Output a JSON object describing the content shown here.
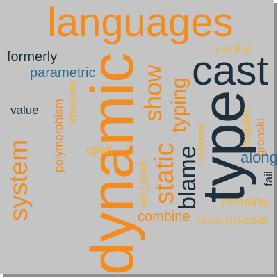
{
  "palette": {
    "orange": "#f28c1e",
    "amber": "#f2b233",
    "navy": "#1d2f3d",
    "blue": "#2f6b94",
    "background": "#c4c4c4"
  },
  "words": [
    {
      "text": "languages",
      "color": "orange"
    },
    {
      "text": "cast",
      "color": "navy"
    },
    {
      "text": "formerly",
      "color": "navy"
    },
    {
      "text": "casting",
      "color": "amber"
    },
    {
      "text": "parametric",
      "color": "blue"
    },
    {
      "text": "polymorphism",
      "color": "orange"
    },
    {
      "text": "knowles",
      "color": "amber"
    },
    {
      "text": "value",
      "color": "navy"
    },
    {
      "text": "show",
      "color": "orange"
    },
    {
      "text": "typing",
      "color": "orange"
    },
    {
      "text": "static",
      "color": "orange"
    },
    {
      "text": "dynamic",
      "color": "orange"
    },
    {
      "text": "type",
      "color": "navy"
    },
    {
      "text": "system",
      "color": "orange"
    },
    {
      "text": "open",
      "color": "amber"
    },
    {
      "text": "scheme",
      "color": "amber"
    },
    {
      "text": "eugster",
      "color": "amber"
    },
    {
      "text": "gronski",
      "color": "orange"
    },
    {
      "text": "wrigstad",
      "color": "amber"
    },
    {
      "text": "blame",
      "color": "navy"
    },
    {
      "text": "along",
      "color": "blue"
    },
    {
      "text": "fail",
      "color": "navy"
    },
    {
      "text": "combine",
      "color": "orange"
    },
    {
      "text": "remains",
      "color": "amber"
    },
    {
      "text": "less-precise",
      "color": "amber"
    }
  ]
}
